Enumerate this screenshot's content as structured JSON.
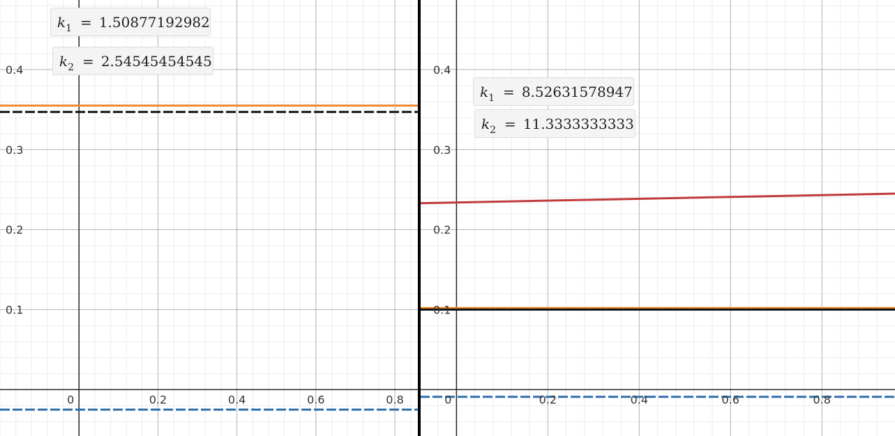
{
  "chart_data": [
    {
      "type": "line",
      "panel": "left",
      "xlim": [
        -0.2,
        0.86
      ],
      "ylim": [
        -0.058,
        0.487
      ],
      "x_ticks": [
        0,
        0.2,
        0.4,
        0.6,
        0.8
      ],
      "y_ticks": [
        0.1,
        0.2,
        0.3,
        0.4
      ],
      "x_tick_labels": [
        "0",
        "0.2",
        "0.4",
        "0.6",
        "0.8"
      ],
      "y_tick_labels": [
        "0.1",
        "0.2",
        "0.3",
        "0.4"
      ],
      "grid": true,
      "series": [
        {
          "color": "#f0882e",
          "style": "solid",
          "x": [
            -0.2,
            0.86
          ],
          "y": [
            0.355,
            0.355
          ]
        },
        {
          "color": "#111111",
          "style": "dashed",
          "x": [
            -0.2,
            0.86
          ],
          "y": [
            0.347,
            0.347
          ]
        },
        {
          "color": "#2f6fab",
          "style": "dashed",
          "x": [
            -0.2,
            0.86
          ],
          "y": [
            -0.025,
            -0.025
          ]
        }
      ],
      "annotations": [
        {
          "name": "k",
          "sub": "1",
          "value": "1.50877192982"
        },
        {
          "name": "k",
          "sub": "2",
          "value": "2.54545454545"
        }
      ]
    },
    {
      "type": "line",
      "panel": "right",
      "xlim": [
        -0.08,
        0.96
      ],
      "ylim": [
        -0.058,
        0.487
      ],
      "x_ticks": [
        0,
        0.2,
        0.4,
        0.6,
        0.8
      ],
      "y_ticks": [
        0.1,
        0.2,
        0.3,
        0.4
      ],
      "x_tick_labels": [
        "0",
        "0.2",
        "0.4",
        "0.6",
        "0.8"
      ],
      "y_tick_labels": [
        "0.1",
        "0.2",
        "0.3",
        "0.4"
      ],
      "grid": true,
      "series": [
        {
          "color": "#c0393b",
          "style": "solid",
          "x": [
            -0.08,
            0.96
          ],
          "y": [
            0.233,
            0.245
          ]
        },
        {
          "color": "#f0882e",
          "style": "solid",
          "x": [
            -0.08,
            0.96
          ],
          "y": [
            0.102,
            0.102
          ]
        },
        {
          "color": "#111111",
          "style": "solid",
          "x": [
            -0.08,
            0.96
          ],
          "y": [
            0.1,
            0.1
          ]
        },
        {
          "color": "#2f6fab",
          "style": "dashed",
          "x": [
            -0.08,
            0.96
          ],
          "y": [
            -0.009,
            -0.009
          ]
        }
      ],
      "annotations": [
        {
          "name": "k",
          "sub": "1",
          "value": "8.52631578947"
        },
        {
          "name": "k",
          "sub": "2",
          "value": "11.3333333333"
        }
      ]
    }
  ],
  "divider_color": "#000000"
}
